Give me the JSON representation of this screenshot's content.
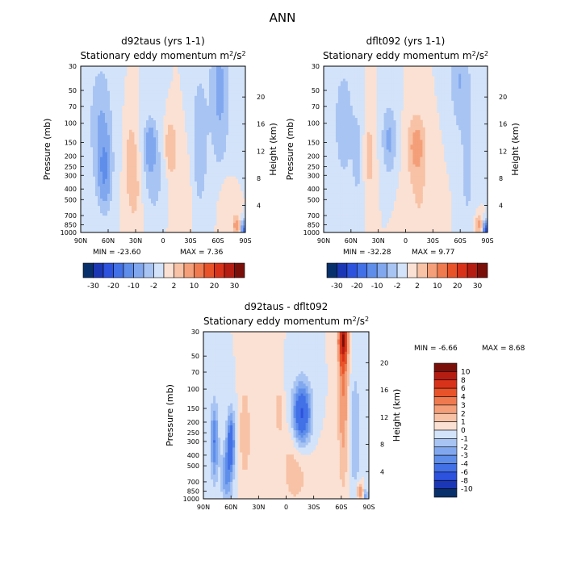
{
  "figure_title": "ANN",
  "chart_data": [
    {
      "type": "contour",
      "title": "d92taus (yrs 1-1)",
      "subtitle_prefix": "Stationary eddy momentum",
      "units": "m2/s2",
      "xlabel": "",
      "ylabel": "Pressure (mb)",
      "ylabel_right": "Height (km)",
      "x_ticks": [
        "90N",
        "60N",
        "30N",
        "0",
        "30S",
        "60S",
        "90S"
      ],
      "y_ticks": [
        30,
        50,
        70,
        100,
        150,
        200,
        250,
        300,
        400,
        500,
        700,
        850,
        1000
      ],
      "y_ticks_right": [
        4,
        8,
        12,
        16,
        20
      ],
      "ylim": [
        1000,
        30
      ],
      "min_label": "MIN = -23.60",
      "max_label": "MAX =   7.36",
      "min": -23.6,
      "max": 7.36,
      "features": [
        {
          "lat": 68,
          "p": 100,
          "value": -5,
          "sx": 8,
          "sy": 0.35
        },
        {
          "lat": 64,
          "p": 270,
          "value": -10,
          "sx": 5,
          "sy": 0.22
        },
        {
          "lat": 35,
          "p": 230,
          "value": 4,
          "sx": 4,
          "sy": 0.25
        },
        {
          "lat": 30,
          "p": 450,
          "value": 2,
          "sx": 5,
          "sy": 0.25
        },
        {
          "lat": 14,
          "p": 160,
          "value": -8,
          "sx": 4,
          "sy": 0.15
        },
        {
          "lat": 10,
          "p": 300,
          "value": -3,
          "sx": 8,
          "sy": 0.3
        },
        {
          "lat": -8,
          "p": 165,
          "value": 5,
          "sx": 4,
          "sy": 0.15
        },
        {
          "lat": -20,
          "p": 500,
          "value": 2,
          "sx": 8,
          "sy": 0.3
        },
        {
          "lat": -40,
          "p": 150,
          "value": -4,
          "sx": 6,
          "sy": 0.45
        },
        {
          "lat": -62,
          "p": 50,
          "value": -6,
          "sx": 7,
          "sy": 0.45
        },
        {
          "lat": -68,
          "p": 600,
          "value": 2,
          "sx": 5,
          "sy": 0.2
        },
        {
          "lat": -80,
          "p": 850,
          "value": 7,
          "sx": 2.5,
          "sy": 0.06
        },
        {
          "lat": -88,
          "p": 950,
          "value": -20,
          "sx": 1.5,
          "sy": 0.05
        }
      ]
    },
    {
      "type": "contour",
      "title": "dflt092 (yrs 1-1)",
      "subtitle_prefix": "Stationary eddy momentum",
      "units": "m2/s2",
      "xlabel": "",
      "ylabel": "Pressure (mb)",
      "ylabel_right": "Height (km)",
      "x_ticks": [
        "90N",
        "60N",
        "30N",
        "0",
        "30S",
        "60S",
        "90S"
      ],
      "y_ticks": [
        30,
        50,
        70,
        100,
        150,
        200,
        250,
        300,
        400,
        500,
        700,
        850,
        1000
      ],
      "y_ticks_right": [
        4,
        8,
        12,
        16,
        20
      ],
      "ylim": [
        1000,
        30
      ],
      "min_label": "MIN = -32.28",
      "max_label": "MAX =   9.77",
      "min": -32.28,
      "max": 9.77,
      "features": [
        {
          "lat": 68,
          "p": 100,
          "value": -4,
          "sx": 7,
          "sy": 0.35
        },
        {
          "lat": 53,
          "p": 200,
          "value": -3,
          "sx": 4,
          "sy": 0.3
        },
        {
          "lat": 40,
          "p": 200,
          "value": 3,
          "sx": 4,
          "sy": 0.25
        },
        {
          "lat": 18,
          "p": 140,
          "value": -6,
          "sx": 5,
          "sy": 0.2
        },
        {
          "lat": -12,
          "p": 160,
          "value": 7,
          "sx": 6,
          "sy": 0.18
        },
        {
          "lat": -15,
          "p": 500,
          "value": 2,
          "sx": 10,
          "sy": 0.3
        },
        {
          "lat": -60,
          "p": 40,
          "value": -5,
          "sx": 7,
          "sy": 0.3
        },
        {
          "lat": -68,
          "p": 250,
          "value": -3,
          "sx": 5,
          "sy": 0.4
        },
        {
          "lat": -80,
          "p": 850,
          "value": 6,
          "sx": 2.5,
          "sy": 0.06
        },
        {
          "lat": -88,
          "p": 950,
          "value": -25,
          "sx": 1.5,
          "sy": 0.05
        }
      ]
    },
    {
      "type": "contour",
      "title": "d92taus - dflt092",
      "subtitle_prefix": "Stationary eddy momentum",
      "units": "m2/s2",
      "xlabel": "",
      "ylabel": "Pressure (mb)",
      "ylabel_right": "Height (km)",
      "x_ticks": [
        "90N",
        "60N",
        "30N",
        "0",
        "30S",
        "60S",
        "90S"
      ],
      "y_ticks": [
        30,
        50,
        70,
        100,
        150,
        200,
        250,
        300,
        400,
        500,
        700,
        850,
        1000
      ],
      "y_ticks_right": [
        4,
        8,
        12,
        16,
        20
      ],
      "ylim": [
        1000,
        30
      ],
      "min_label": "MIN =   -6.66",
      "max_label": "MAX =     8.68",
      "min": -6.66,
      "max": 8.68,
      "features": [
        {
          "lat": 78,
          "p": 300,
          "value": -4,
          "sx": 3,
          "sy": 0.25
        },
        {
          "lat": 60,
          "p": 300,
          "value": -5,
          "sx": 3,
          "sy": 0.2
        },
        {
          "lat": 65,
          "p": 600,
          "value": -3,
          "sx": 4,
          "sy": 0.2
        },
        {
          "lat": 45,
          "p": 250,
          "value": 2,
          "sx": 4,
          "sy": 0.3
        },
        {
          "lat": 8,
          "p": 160,
          "value": 2,
          "sx": 3,
          "sy": 0.12
        },
        {
          "lat": -17,
          "p": 170,
          "value": -6.5,
          "sx": 7,
          "sy": 0.2
        },
        {
          "lat": -10,
          "p": 500,
          "value": 1.5,
          "sx": 12,
          "sy": 0.3
        },
        {
          "lat": -62,
          "p": 35,
          "value": 8.5,
          "sx": 3,
          "sy": 0.15
        },
        {
          "lat": -62,
          "p": 100,
          "value": 3,
          "sx": 4,
          "sy": 0.6
        },
        {
          "lat": -75,
          "p": 250,
          "value": -2,
          "sx": 4,
          "sy": 0.4
        },
        {
          "lat": -80,
          "p": 850,
          "value": 3,
          "sx": 2.5,
          "sy": 0.06
        },
        {
          "lat": -87,
          "p": 950,
          "value": -3,
          "sx": 1.5,
          "sy": 0.05
        }
      ]
    }
  ],
  "colorbar_top": {
    "labels": [
      "-30",
      "-20",
      "-10",
      "-2",
      "2",
      "10",
      "20",
      "30"
    ],
    "levels": [
      -40,
      -30,
      -25,
      -20,
      -15,
      -10,
      -5,
      -2,
      0,
      2,
      5,
      10,
      15,
      20,
      25,
      30,
      40
    ],
    "colors": [
      "#08306b",
      "#1c37b5",
      "#2c52de",
      "#4270e6",
      "#5f8eea",
      "#81a8ef",
      "#a8c4f3",
      "#d3e3f9",
      "#fbe1d3",
      "#f7c2a6",
      "#f49f79",
      "#ef7a4f",
      "#e8532a",
      "#d8331a",
      "#b51d12",
      "#7a0f0a"
    ]
  },
  "colorbar_bottom": {
    "labels": [
      "10",
      "8",
      "6",
      "4",
      "3",
      "2",
      "1",
      "0",
      "-1",
      "-2",
      "-3",
      "-4",
      "-6",
      "-8",
      "-10"
    ],
    "levels": [
      -12,
      -10,
      -8,
      -6,
      -4,
      -3,
      -2,
      -1,
      0,
      1,
      2,
      3,
      4,
      6,
      8,
      10,
      12
    ],
    "colors": [
      "#08306b",
      "#1c37b5",
      "#2c52de",
      "#4270e6",
      "#5f8eea",
      "#81a8ef",
      "#a8c4f3",
      "#d3e3f9",
      "#fbe1d3",
      "#f7c2a6",
      "#f49f79",
      "#ef7a4f",
      "#e8532a",
      "#d8331a",
      "#b51d12",
      "#7a0f0a"
    ]
  }
}
